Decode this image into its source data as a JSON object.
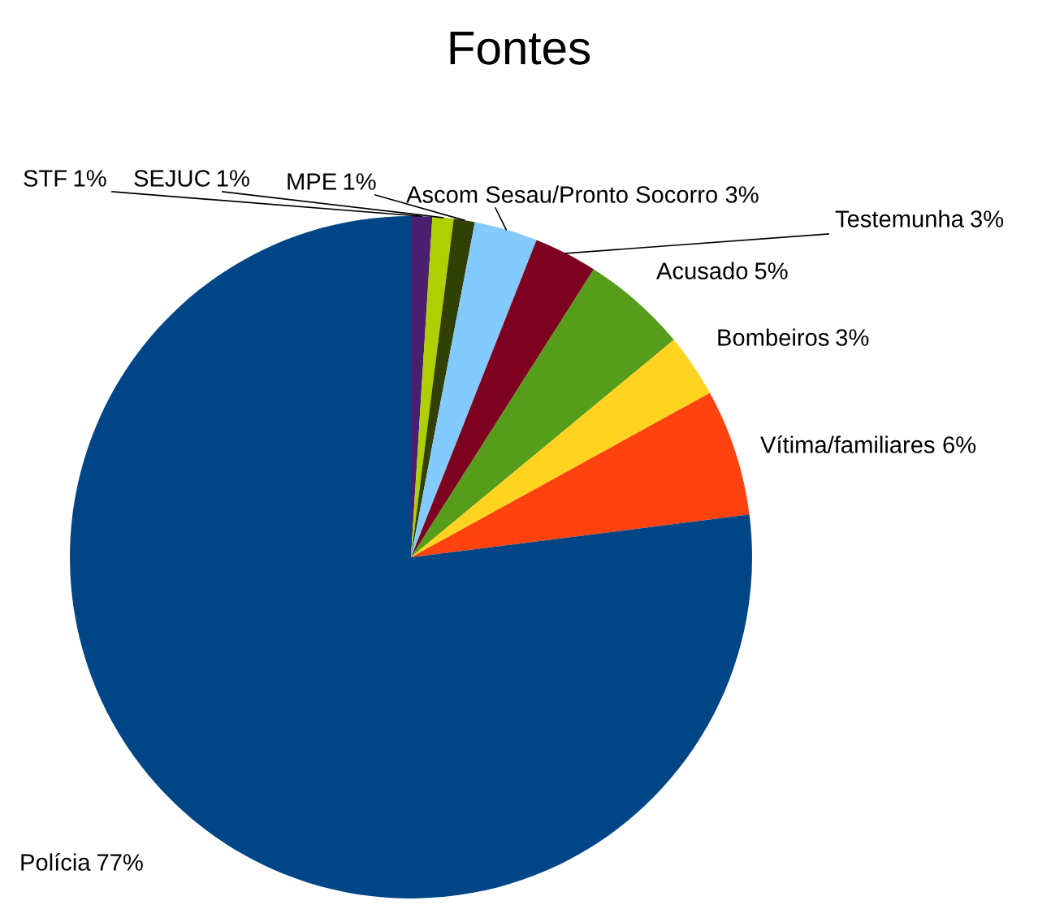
{
  "chart_data": {
    "type": "pie",
    "title": "Fontes",
    "categories": [
      "STF",
      "SEJUC",
      "MPE",
      "Ascom Sesau/Pronto Socorro",
      "Testemunha",
      "Acusado",
      "Bombeiros",
      "Vítima/familiares",
      "Polícia"
    ],
    "values": [
      1,
      1,
      1,
      3,
      3,
      5,
      3,
      6,
      77
    ],
    "colors": [
      "#4b1f6f",
      "#aecf00",
      "#314004",
      "#83caff",
      "#7e0021",
      "#579d1c",
      "#ffd320",
      "#ff420e",
      "#004586"
    ],
    "value_labels": [
      "1%",
      "1%",
      "1%",
      "3%",
      "3%",
      "5%",
      "3%",
      "6%",
      "77%"
    ],
    "legend": false
  }
}
